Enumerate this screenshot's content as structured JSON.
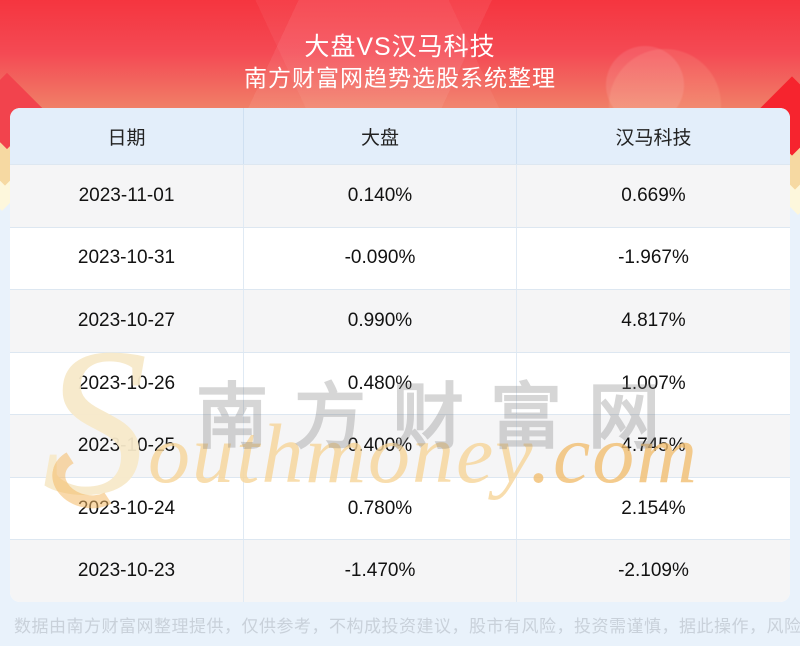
{
  "header": {
    "title": "大盘VS汉马科技",
    "subtitle": "南方财富网趋势选股系统整理"
  },
  "table": {
    "columns": [
      "日期",
      "大盘",
      "汉马科技"
    ],
    "rows": [
      {
        "date": "2023-11-01",
        "market": "0.140%",
        "stock": "0.669%"
      },
      {
        "date": "2023-10-31",
        "market": "-0.090%",
        "stock": "-1.967%"
      },
      {
        "date": "2023-10-27",
        "market": "0.990%",
        "stock": "4.817%"
      },
      {
        "date": "2023-10-26",
        "market": "0.480%",
        "stock": "1.007%"
      },
      {
        "date": "2023-10-25",
        "market": "0.400%",
        "stock": "4.745%"
      },
      {
        "date": "2023-10-24",
        "market": "0.780%",
        "stock": "2.154%"
      },
      {
        "date": "2023-10-23",
        "market": "-1.470%",
        "stock": "-2.109%"
      }
    ]
  },
  "watermark": {
    "cn": "南方财富网",
    "en_initial": "S",
    "en_rest": "outhmoney",
    "en_domain": ".com"
  },
  "footer": {
    "disclaimer": "数据由南方财富网整理提供，仅供参考，不构成投资建议，股市有风险，投资需谨慎，据此操作，风险自担。"
  },
  "colors": {
    "banner_red_top": "#f5353f",
    "banner_orange_bottom": "#f0c592",
    "page_background": "#e9f2fb",
    "table_header_bg": "#e3eefa",
    "row_alt_bg": "#f5f5f6",
    "row_border": "#dde7f1",
    "cell_text": "#121212",
    "disclaimer_text": "#c9d1da",
    "watermark_gray": "#767676",
    "watermark_orange": "#f6d598"
  }
}
